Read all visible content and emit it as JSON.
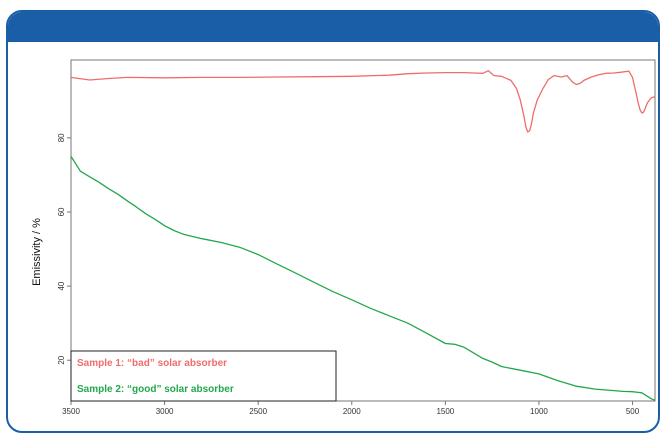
{
  "chart_data": {
    "type": "line",
    "title": "",
    "xlabel": "",
    "ylabel": "Emissivity / %",
    "xlim": [
      3500,
      380
    ],
    "ylim": [
      9,
      101
    ],
    "x_reversed": true,
    "grid": false,
    "x_ticks": [
      3500,
      3000,
      2500,
      2000,
      1500,
      1000,
      500
    ],
    "y_ticks": [
      20,
      40,
      60,
      80
    ],
    "legend_position": "bottom-left",
    "series": [
      {
        "name": "Sample 1: “bad” solar absorber",
        "color": "#f06c6c",
        "x": [
          3500,
          3400,
          3300,
          3200,
          3000,
          2800,
          2600,
          2400,
          2200,
          2000,
          1800,
          1700,
          1600,
          1500,
          1400,
          1350,
          1300,
          1270,
          1240,
          1200,
          1150,
          1120,
          1100,
          1080,
          1070,
          1060,
          1050,
          1040,
          1030,
          1010,
          980,
          950,
          920,
          880,
          850,
          820,
          800,
          780,
          760,
          720,
          680,
          640,
          600,
          560,
          520,
          500,
          480,
          470,
          460,
          450,
          440,
          420,
          400,
          380
        ],
        "y": [
          96.3,
          95.6,
          96,
          96.3,
          96.2,
          96.3,
          96.3,
          96.4,
          96.5,
          96.6,
          96.9,
          97.3,
          97.5,
          97.6,
          97.6,
          97.5,
          97.4,
          98.1,
          96.8,
          96.6,
          95.5,
          93.3,
          90.3,
          85.8,
          83,
          81.6,
          81.9,
          83.8,
          86.6,
          90.1,
          93.2,
          95.7,
          96.8,
          96.4,
          96.8,
          95,
          94.4,
          94.7,
          95.5,
          96.4,
          97,
          97.4,
          97.5,
          97.7,
          98,
          96.3,
          91.8,
          89.4,
          87.6,
          86.7,
          87,
          89.5,
          90.8,
          91.1
        ]
      },
      {
        "name": "Sample 2: “good” solar absorber",
        "color": "#22a84a",
        "x": [
          3500,
          3450,
          3400,
          3350,
          3300,
          3250,
          3200,
          3150,
          3100,
          3050,
          3000,
          2950,
          2900,
          2800,
          2700,
          2600,
          2500,
          2400,
          2300,
          2200,
          2100,
          2000,
          1900,
          1800,
          1700,
          1600,
          1500,
          1450,
          1400,
          1350,
          1300,
          1250,
          1200,
          1100,
          1000,
          900,
          800,
          700,
          600,
          550,
          500,
          450,
          400,
          380
        ],
        "y": [
          75,
          71,
          69.5,
          68,
          66.3,
          64.8,
          63,
          61.3,
          59.5,
          58,
          56.3,
          55,
          54,
          52.8,
          51.8,
          50.5,
          48.5,
          46,
          43.5,
          41,
          38.5,
          36.3,
          34,
          32,
          30,
          27.3,
          24.5,
          24.3,
          23.5,
          22,
          20.5,
          19.5,
          18.3,
          17.3,
          16.3,
          14.5,
          13,
          12.2,
          11.8,
          11.6,
          11.5,
          11.2,
          9.6,
          9.2
        ]
      }
    ]
  }
}
